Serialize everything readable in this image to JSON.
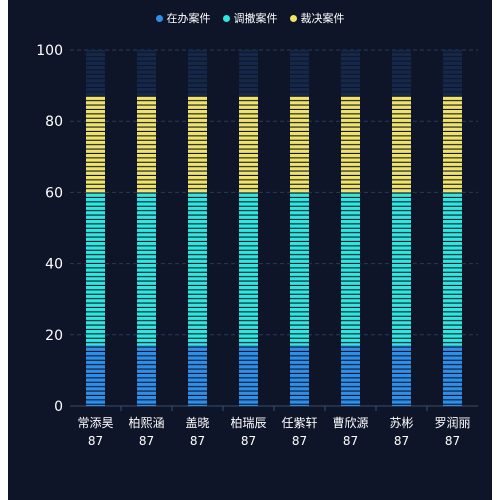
{
  "chart_data": {
    "type": "bar",
    "stacked": true,
    "categories": [
      "常添昊",
      "柏熙涵",
      "盖晓",
      "柏瑞辰",
      "任紫轩",
      "曹欣源",
      "苏彬",
      "罗润丽"
    ],
    "category_values": [
      "87",
      "87",
      "87",
      "87",
      "87",
      "87",
      "87",
      "87"
    ],
    "series": [
      {
        "name": "在办案件",
        "color": "#2e8fe8",
        "values": [
          17,
          17,
          17,
          17,
          17,
          17,
          17,
          17
        ]
      },
      {
        "name": "调撤案件",
        "color": "#2ee8df",
        "values": [
          43,
          43,
          43,
          43,
          43,
          43,
          43,
          43
        ]
      },
      {
        "name": "裁决案件",
        "color": "#f0e36a",
        "values": [
          27,
          27,
          27,
          27,
          27,
          27,
          27,
          27
        ]
      }
    ],
    "background_color": "#16284a",
    "ylim": [
      0,
      100
    ],
    "yticks": [
      "0",
      "20",
      "40",
      "60",
      "80",
      "100"
    ],
    "grid": true,
    "legend_position": "top-center"
  }
}
